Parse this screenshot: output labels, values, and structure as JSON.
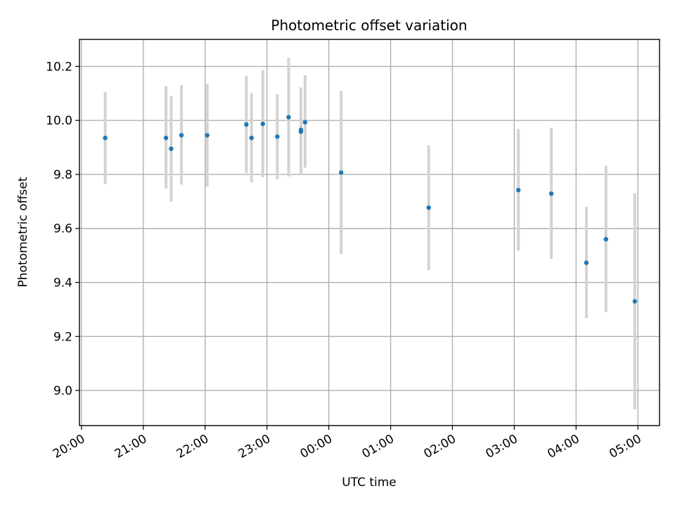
{
  "chart_data": {
    "type": "scatter",
    "title": "Photometric offset variation",
    "xlabel": "UTC time",
    "ylabel": "Photometric offset",
    "grid": true,
    "xlim": [
      "19:58",
      "05:21"
    ],
    "ylim": [
      8.87,
      10.3
    ],
    "x_ticks": [
      "20:00",
      "21:00",
      "22:00",
      "23:00",
      "00:00",
      "01:00",
      "02:00",
      "03:00",
      "04:00",
      "05:00"
    ],
    "y_ticks": [
      "9.0",
      "9.2",
      "9.4",
      "9.6",
      "9.8",
      "10.0",
      "10.2"
    ],
    "point_color": "#1f77b4",
    "errorbar_color": "#d3d3d3",
    "series": [
      {
        "points": [
          {
            "x": "20:23",
            "y": 9.935,
            "y_low": 9.765,
            "y_high": 10.105
          },
          {
            "x": "21:22",
            "y": 9.935,
            "y_low": 9.748,
            "y_high": 10.127
          },
          {
            "x": "21:27",
            "y": 9.895,
            "y_low": 9.7,
            "y_high": 10.09
          },
          {
            "x": "21:37",
            "y": 9.945,
            "y_low": 9.762,
            "y_high": 10.13
          },
          {
            "x": "22:02",
            "y": 9.945,
            "y_low": 9.755,
            "y_high": 10.135
          },
          {
            "x": "22:40",
            "y": 9.985,
            "y_low": 9.805,
            "y_high": 10.165
          },
          {
            "x": "22:45",
            "y": 9.935,
            "y_low": 9.77,
            "y_high": 10.1
          },
          {
            "x": "22:56",
            "y": 9.987,
            "y_low": 9.79,
            "y_high": 10.187
          },
          {
            "x": "23:10",
            "y": 9.94,
            "y_low": 9.782,
            "y_high": 10.097
          },
          {
            "x": "23:21",
            "y": 10.012,
            "y_low": 9.792,
            "y_high": 10.232
          },
          {
            "x": "23:33",
            "y": 9.965,
            "y_low": 9.8,
            "y_high": 10.122
          },
          {
            "x": "23:33",
            "y": 9.958,
            "y_low": 9.8,
            "y_high": 10.122
          },
          {
            "x": "23:37",
            "y": 9.993,
            "y_low": 9.825,
            "y_high": 10.167
          },
          {
            "x": "00:12",
            "y": 9.807,
            "y_low": 9.505,
            "y_high": 10.11
          },
          {
            "x": "01:37",
            "y": 9.677,
            "y_low": 9.445,
            "y_high": 9.908
          },
          {
            "x": "03:04",
            "y": 9.742,
            "y_low": 9.518,
            "y_high": 9.968
          },
          {
            "x": "03:36",
            "y": 9.729,
            "y_low": 9.487,
            "y_high": 9.972
          },
          {
            "x": "04:10",
            "y": 9.473,
            "y_low": 9.268,
            "y_high": 9.68
          },
          {
            "x": "04:29",
            "y": 9.56,
            "y_low": 9.29,
            "y_high": 9.832
          },
          {
            "x": "04:57",
            "y": 9.33,
            "y_low": 8.93,
            "y_high": 9.73
          }
        ]
      }
    ]
  }
}
